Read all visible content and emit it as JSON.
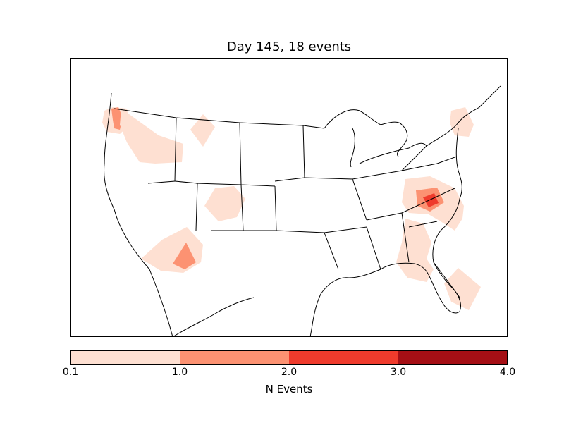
{
  "title": "Day 145, 18 events",
  "colorbar": {
    "label": "N Events",
    "ticks": [
      "0.1",
      "1.0",
      "2.0",
      "3.0",
      "4.0"
    ],
    "bins": [
      {
        "from": 0.1,
        "to": 1.0,
        "color": "#fee0d2"
      },
      {
        "from": 1.0,
        "to": 2.0,
        "color": "#fc9272"
      },
      {
        "from": 2.0,
        "to": 3.0,
        "color": "#ef3b2c"
      },
      {
        "from": 3.0,
        "to": 4.0,
        "color": "#a50f15"
      }
    ]
  },
  "map": {
    "region": "Continental United States",
    "colors": {
      "low": "#fee0d2",
      "mid": "#fc9272",
      "high": "#ef3b2c",
      "border": "#000000"
    }
  }
}
